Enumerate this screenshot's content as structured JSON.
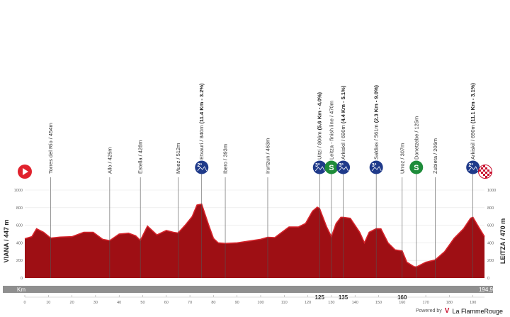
{
  "chart_data": {
    "type": "area",
    "title": "",
    "xlabel": "Km",
    "ylabel": "",
    "xlim": [
      0,
      194.9
    ],
    "ylim": [
      0,
      1000
    ],
    "yticks": [
      0,
      200,
      400,
      600,
      800,
      1000
    ],
    "grid": true,
    "start": {
      "label": "VIANA / 447 m",
      "km": 0,
      "alt": 447
    },
    "finish": {
      "label": "LEITZA / 470 m",
      "km": 194.9,
      "alt": 470
    },
    "profile": [
      [
        0,
        447
      ],
      [
        3,
        470
      ],
      [
        5,
        560
      ],
      [
        8,
        520
      ],
      [
        11,
        454
      ],
      [
        15,
        465
      ],
      [
        20,
        470
      ],
      [
        25,
        520
      ],
      [
        29,
        520
      ],
      [
        33,
        440
      ],
      [
        36,
        425
      ],
      [
        40,
        500
      ],
      [
        44,
        510
      ],
      [
        47,
        480
      ],
      [
        49,
        428
      ],
      [
        52,
        590
      ],
      [
        56,
        490
      ],
      [
        60,
        540
      ],
      [
        63,
        520
      ],
      [
        65,
        512
      ],
      [
        68,
        600
      ],
      [
        71,
        700
      ],
      [
        73,
        830
      ],
      [
        75,
        840
      ],
      [
        78,
        600
      ],
      [
        80,
        450
      ],
      [
        82,
        400
      ],
      [
        85,
        393
      ],
      [
        90,
        400
      ],
      [
        95,
        420
      ],
      [
        100,
        440
      ],
      [
        103,
        463
      ],
      [
        106,
        460
      ],
      [
        108,
        500
      ],
      [
        112,
        580
      ],
      [
        116,
        580
      ],
      [
        119,
        620
      ],
      [
        122,
        760
      ],
      [
        124,
        806
      ],
      [
        125,
        790
      ],
      [
        128,
        580
      ],
      [
        130,
        470
      ],
      [
        132,
        620
      ],
      [
        134,
        690
      ],
      [
        135,
        690
      ],
      [
        138,
        680
      ],
      [
        142,
        520
      ],
      [
        144,
        400
      ],
      [
        146,
        520
      ],
      [
        149,
        561
      ],
      [
        151,
        560
      ],
      [
        154,
        400
      ],
      [
        157,
        320
      ],
      [
        160,
        307
      ],
      [
        162,
        180
      ],
      [
        165,
        130
      ],
      [
        166,
        125
      ],
      [
        170,
        180
      ],
      [
        174,
        206
      ],
      [
        178,
        300
      ],
      [
        182,
        450
      ],
      [
        186,
        560
      ],
      [
        189,
        680
      ],
      [
        190,
        690
      ],
      [
        192,
        600
      ],
      [
        194.9,
        470
      ]
    ],
    "km_ticks": [
      0,
      10,
      20,
      30,
      40,
      50,
      60,
      70,
      80,
      90,
      100,
      110,
      120,
      130,
      140,
      150,
      160,
      170,
      180,
      190
    ],
    "waypoints": [
      {
        "km": 11,
        "km_label": "11",
        "name": "Torres del Río / 454m",
        "bold": "",
        "icon": ""
      },
      {
        "km": 36,
        "km_label": "36",
        "name": "Allo / 425m",
        "bold": "",
        "icon": ""
      },
      {
        "km": 49,
        "km_label": "49",
        "name": "Estella / 428m",
        "bold": "",
        "icon": ""
      },
      {
        "km": 65,
        "km_label": "65",
        "name": "Muez / 512m",
        "bold": "",
        "icon": ""
      },
      {
        "km": 75,
        "km_label": "75",
        "name": "Etxauri / 840m",
        "bold": "(11.4 Km - 3.2%)",
        "icon": "kom-2"
      },
      {
        "km": 85,
        "km_label": "85",
        "name": "Ibero / 393m",
        "bold": "",
        "icon": ""
      },
      {
        "km": 103,
        "km_label": "103",
        "name": "Irurtzun / 463m",
        "bold": "",
        "icon": ""
      },
      {
        "km": 125,
        "km_label": "125",
        "name": "Uitzi / 806m",
        "bold": "(5.6 Km - 4.0%)",
        "icon": "kom-3"
      },
      {
        "km": 130,
        "km_label": "130",
        "name": "Leitza - finish line / 470m",
        "bold": "",
        "icon": "sprint"
      },
      {
        "km": 135,
        "km_label": "135",
        "name": "Arkiskil / 690m",
        "bold": "(4.4 Km - 5.1%)",
        "icon": "kom-3"
      },
      {
        "km": 149,
        "km_label": "149",
        "name": "Saldias / 561m",
        "bold": "(2.3 Km - 9.0%)",
        "icon": "kom-3"
      },
      {
        "km": 160,
        "km_label": "160",
        "name": "Urroz / 307m",
        "bold": "",
        "icon": ""
      },
      {
        "km": 166,
        "km_label": "166",
        "name": "Donetzebe / 125m",
        "bold": "",
        "icon": "sprint"
      },
      {
        "km": 174,
        "km_label": "174",
        "name": "Zubieta / 206m",
        "bold": "",
        "icon": ""
      },
      {
        "km": 190,
        "km_label": "190",
        "name": "Arkiskil / 690m",
        "bold": "(11.1 Km - 3.1%)",
        "icon": "kom-2"
      }
    ],
    "finish_km_label": "194,9",
    "icon_text": {
      "kom-2": "2ª",
      "kom-3": "3ª",
      "sprint": "S"
    },
    "colors": {
      "profile": "#9e0f14",
      "profile_top": "#d6242b",
      "kom": "#1f3a8a",
      "sprint": "#1e8c3a",
      "start": "#e0222d",
      "bar": "#8f8f8f"
    }
  },
  "credit": {
    "powered_by": "Powered by",
    "brand": "La FlammeRouge",
    "logo": "V"
  }
}
